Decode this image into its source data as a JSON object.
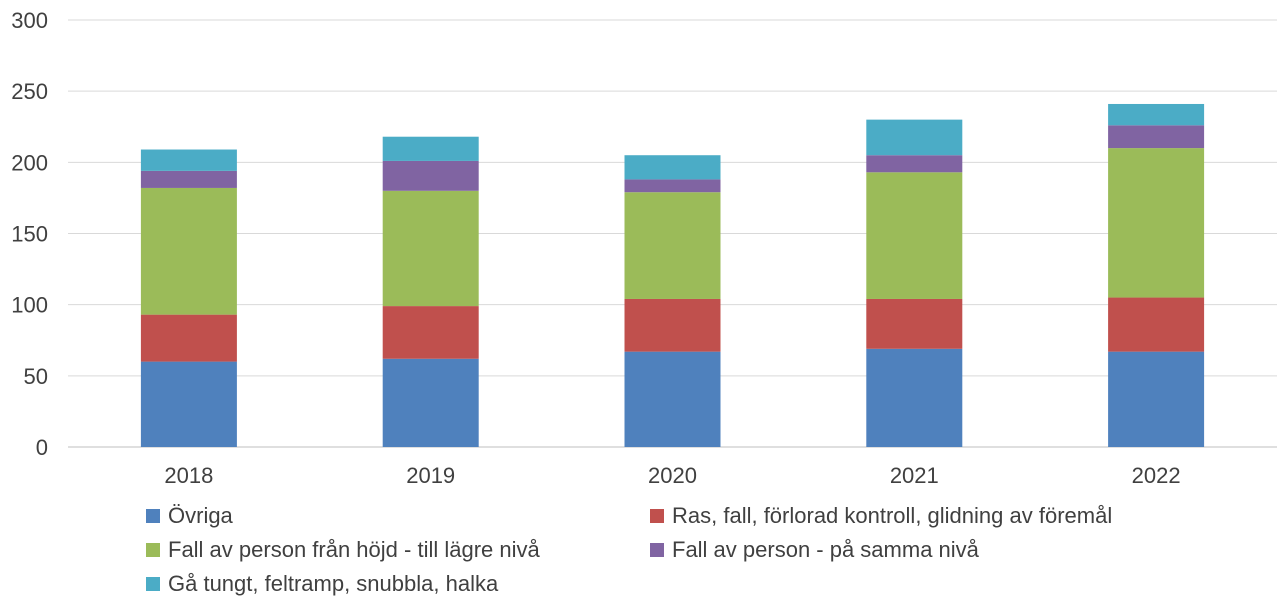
{
  "chart_data": {
    "type": "bar",
    "stacked": true,
    "categories": [
      "2018",
      "2019",
      "2020",
      "2021",
      "2022"
    ],
    "series": [
      {
        "name": "Övriga",
        "color": "#4F81BD",
        "values": [
          60,
          62,
          67,
          69,
          67
        ]
      },
      {
        "name": "Ras, fall, förlorad kontroll, glidning av föremål",
        "color": "#C0504D",
        "values": [
          33,
          37,
          37,
          35,
          38
        ]
      },
      {
        "name": "Fall av person från höjd - till lägre nivå",
        "color": "#9BBB59",
        "values": [
          89,
          81,
          75,
          89,
          105
        ]
      },
      {
        "name": "Fall av person - på samma nivå",
        "color": "#8064A2",
        "values": [
          12,
          21,
          9,
          12,
          16
        ]
      },
      {
        "name": "Gå tungt, feltramp, snubbla, halka",
        "color": "#4BACC6",
        "values": [
          15,
          17,
          17,
          25,
          15
        ]
      }
    ],
    "ylim": [
      0,
      300
    ],
    "yticks": [
      0,
      50,
      100,
      150,
      200,
      250,
      300
    ],
    "grid": true,
    "legend_position": "bottom"
  }
}
